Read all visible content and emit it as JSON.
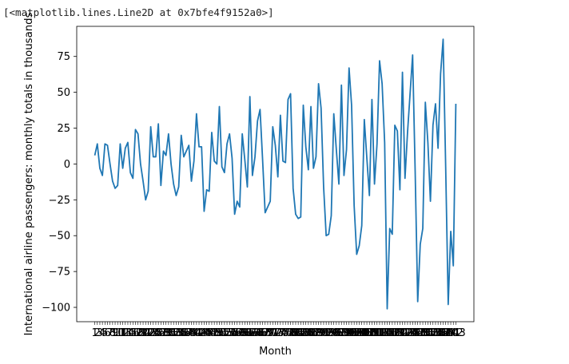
{
  "output": {
    "repr_text": "[<matplotlib.lines.Line2D at 0x7bfe4f9152a0>]"
  },
  "chart_data": {
    "type": "line",
    "title": "",
    "xlabel": "Month",
    "ylabel": "International airline passengers: monthly totals in thousands",
    "ylim": [
      -110,
      96
    ],
    "yticks": [
      75,
      50,
      25,
      0,
      -25,
      -50,
      -75,
      -100
    ],
    "grid": false,
    "legend": "none",
    "line_color": "#1f77b4",
    "x": [
      1,
      2,
      3,
      4,
      5,
      6,
      7,
      8,
      9,
      10,
      11,
      12,
      13,
      14,
      15,
      16,
      17,
      18,
      19,
      20,
      21,
      22,
      23,
      24,
      25,
      26,
      27,
      28,
      29,
      30,
      31,
      32,
      33,
      34,
      35,
      36,
      37,
      38,
      39,
      40,
      41,
      42,
      43,
      44,
      45,
      46,
      47,
      48,
      49,
      50,
      51,
      52,
      53,
      54,
      55,
      56,
      57,
      58,
      59,
      60,
      61,
      62,
      63,
      64,
      65,
      66,
      67,
      68,
      69,
      70,
      71,
      72,
      73,
      74,
      75,
      76,
      77,
      78,
      79,
      80,
      81,
      82,
      83,
      84,
      85,
      86,
      87,
      88,
      89,
      90,
      91,
      92,
      93,
      94,
      95,
      96,
      97,
      98,
      99,
      100,
      101,
      102,
      103,
      104,
      105,
      106,
      107,
      108,
      109,
      110,
      111,
      112,
      113,
      114,
      115,
      116,
      117,
      118,
      119,
      120,
      121,
      122,
      123,
      124,
      125,
      126,
      127,
      128,
      129,
      130,
      131,
      132,
      133,
      134,
      135,
      136,
      137,
      138,
      139,
      140,
      141,
      142,
      143
    ],
    "values": [
      6,
      14,
      -3,
      -8,
      14,
      13,
      0,
      -12,
      -17,
      -15,
      14,
      -3,
      11,
      15,
      -6,
      -10,
      24,
      21,
      0,
      -12,
      -25,
      -19,
      26,
      5,
      5,
      28,
      -15,
      9,
      6,
      21,
      0,
      -14,
      -22,
      -16,
      20,
      5,
      9,
      13,
      -12,
      2,
      35,
      12,
      12,
      -33,
      -18,
      -19,
      22,
      2,
      0,
      40,
      -2,
      -6,
      14,
      21,
      4,
      -35,
      -26,
      -30,
      21,
      3,
      -16,
      47,
      -8,
      5,
      30,
      38,
      3,
      -34,
      -30,
      -26,
      26,
      13,
      -9,
      34,
      2,
      1,
      45,
      49,
      -17,
      -35,
      -38,
      -37,
      41,
      12,
      -4,
      40,
      -3,
      5,
      56,
      39,
      -16,
      -50,
      -49,
      -36,
      35,
      10,
      -14,
      55,
      -8,
      10,
      67,
      41,
      -29,
      -63,
      -57,
      -43,
      31,
      4,
      -22,
      45,
      -14,
      14,
      72,
      56,
      15,
      -101,
      -45,
      -49,
      27,
      23,
      -18,
      64,
      -10,
      22,
      49,
      76,
      -5,
      -96,
      -56,
      -45,
      43,
      15,
      -26,
      27,
      42,
      11,
      63,
      87,
      -2,
      -98,
      -47,
      -71,
      42
    ]
  }
}
